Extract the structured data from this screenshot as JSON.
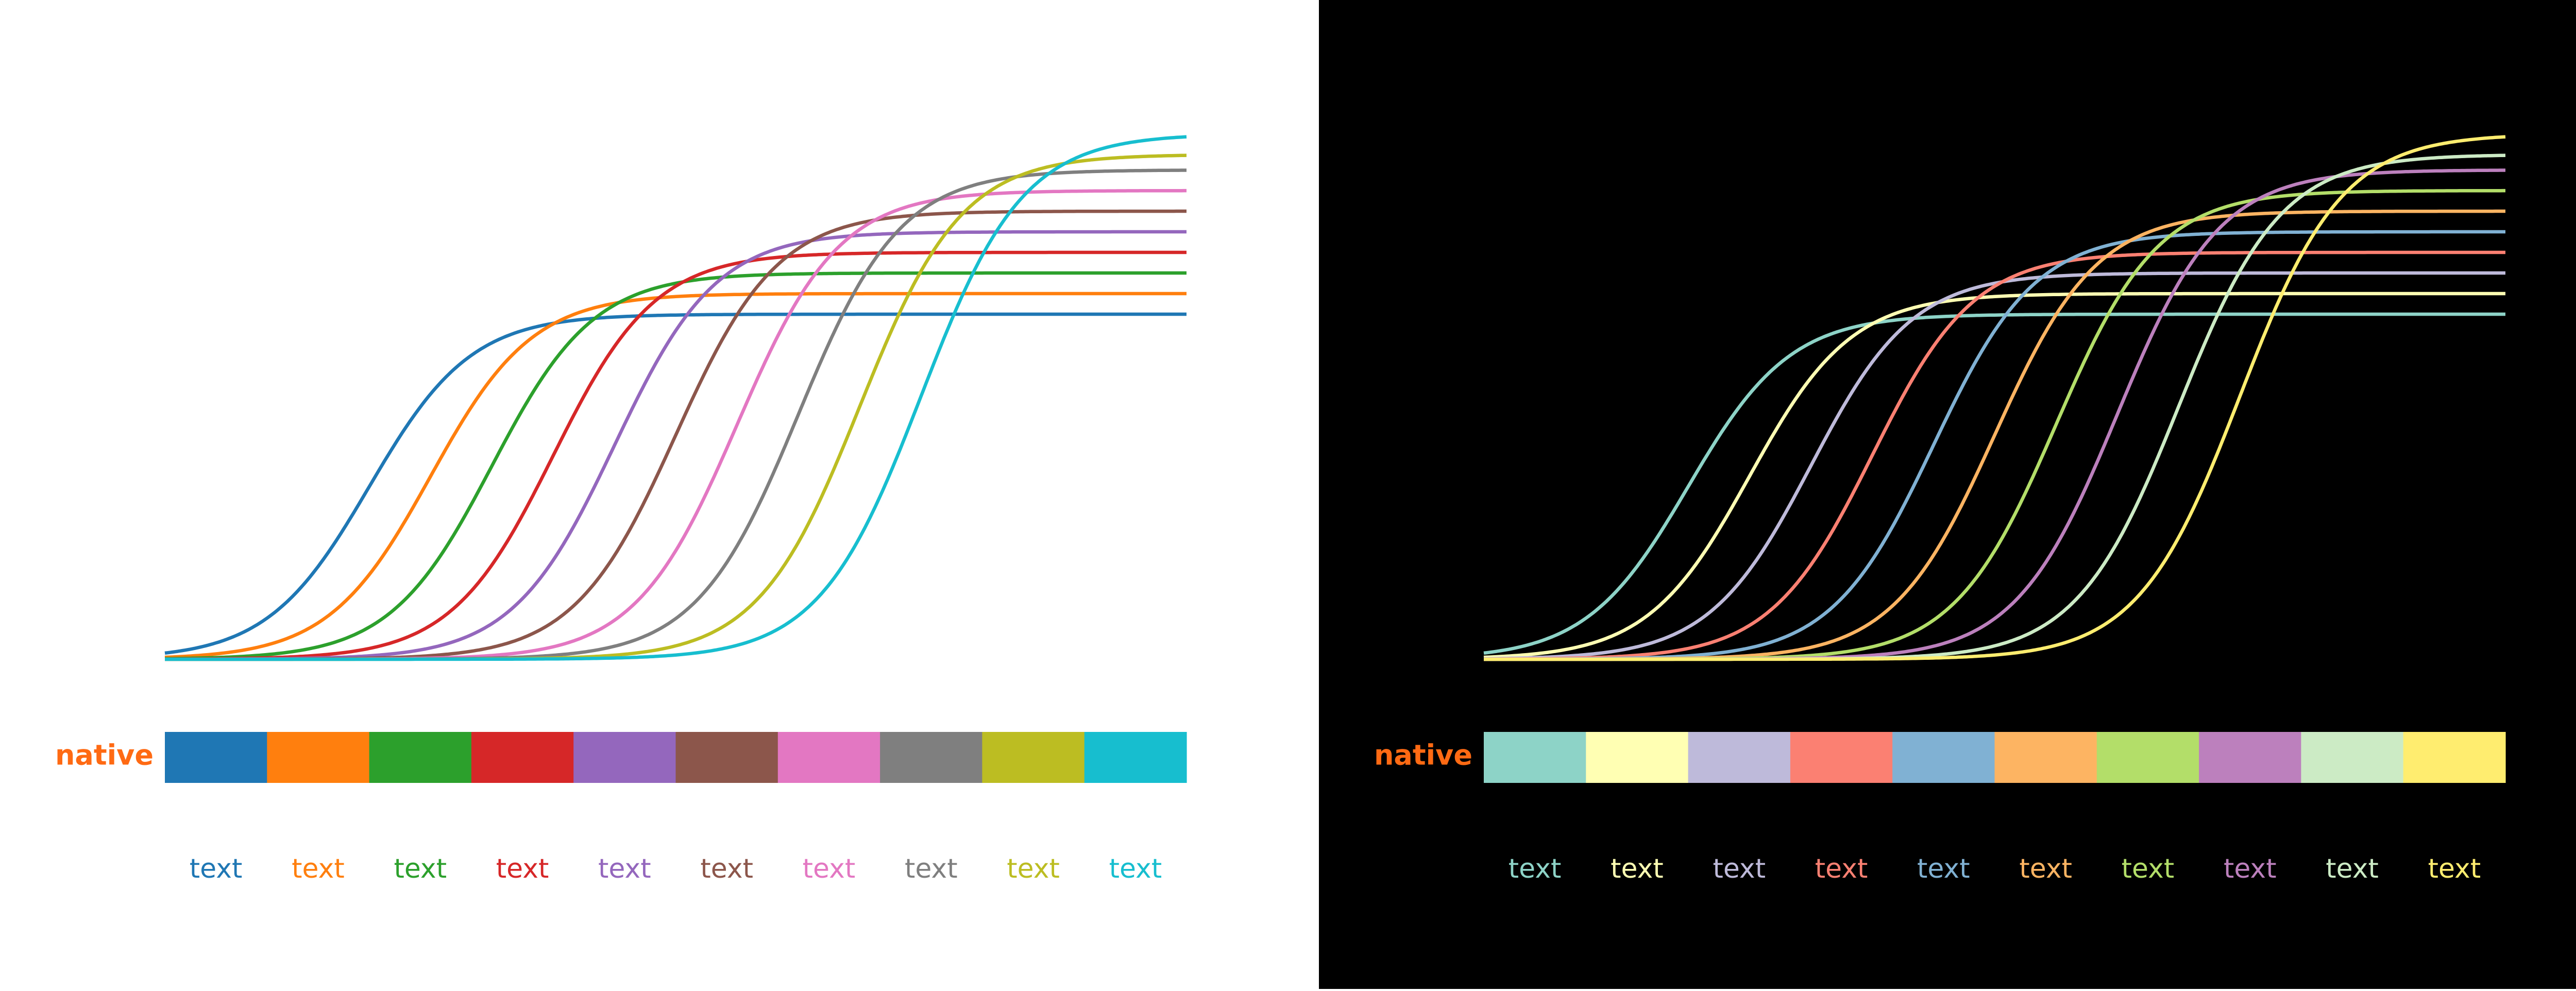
{
  "chart_data": [
    {
      "type": "line",
      "theme": "light",
      "background": "#ffffff",
      "axes_visible": false,
      "grid": false,
      "x_range": [
        0,
        1
      ],
      "y_range": [
        0,
        1
      ],
      "curve_form": "sigmoid",
      "series": [
        {
          "color": "#1f77b4",
          "plateau": 0.67,
          "midpoint": 0.2
        },
        {
          "color": "#ff7f0e",
          "plateau": 0.71,
          "midpoint": 0.26
        },
        {
          "color": "#2ca02c",
          "plateau": 0.75,
          "midpoint": 0.32
        },
        {
          "color": "#d62728",
          "plateau": 0.79,
          "midpoint": 0.38
        },
        {
          "color": "#9467bd",
          "plateau": 0.83,
          "midpoint": 0.44
        },
        {
          "color": "#8c564b",
          "plateau": 0.87,
          "midpoint": 0.5
        },
        {
          "color": "#e377c2",
          "plateau": 0.91,
          "midpoint": 0.56
        },
        {
          "color": "#7f7f7f",
          "plateau": 0.95,
          "midpoint": 0.62
        },
        {
          "color": "#bcbd22",
          "plateau": 0.98,
          "midpoint": 0.68
        },
        {
          "color": "#17becf",
          "plateau": 1.02,
          "midpoint": 0.74
        }
      ],
      "swatch_label": "native",
      "swatch_label_color": "#ff6a13",
      "swatches": [
        "#1f77b4",
        "#ff7f0e",
        "#2ca02c",
        "#d62728",
        "#9467bd",
        "#8c564b",
        "#e377c2",
        "#7f7f7f",
        "#bcbd22",
        "#17becf"
      ],
      "text_labels": [
        "text",
        "text",
        "text",
        "text",
        "text",
        "text",
        "text",
        "text",
        "text",
        "text"
      ]
    },
    {
      "type": "line",
      "theme": "dark",
      "background": "#000000",
      "axes_visible": false,
      "grid": false,
      "x_range": [
        0,
        1
      ],
      "y_range": [
        0,
        1
      ],
      "curve_form": "sigmoid",
      "series": [
        {
          "color": "#8dd3c7",
          "plateau": 0.67,
          "midpoint": 0.2
        },
        {
          "color": "#ffffb3",
          "plateau": 0.71,
          "midpoint": 0.26
        },
        {
          "color": "#bebada",
          "plateau": 0.75,
          "midpoint": 0.32
        },
        {
          "color": "#fb8072",
          "plateau": 0.79,
          "midpoint": 0.38
        },
        {
          "color": "#80b1d3",
          "plateau": 0.83,
          "midpoint": 0.44
        },
        {
          "color": "#fdb462",
          "plateau": 0.87,
          "midpoint": 0.5
        },
        {
          "color": "#b3de69",
          "plateau": 0.91,
          "midpoint": 0.56
        },
        {
          "color": "#bc80bd",
          "plateau": 0.95,
          "midpoint": 0.62
        },
        {
          "color": "#ccebc5",
          "plateau": 0.98,
          "midpoint": 0.68
        },
        {
          "color": "#ffed6f",
          "plateau": 1.02,
          "midpoint": 0.74
        }
      ],
      "swatch_label": "native",
      "swatch_label_color": "#ff6a13",
      "swatches": [
        "#8dd3c7",
        "#ffffb3",
        "#bebada",
        "#fb8072",
        "#80b1d3",
        "#fdb462",
        "#b3de69",
        "#bc80bd",
        "#ccebc5",
        "#ffed6f"
      ],
      "text_labels": [
        "text",
        "text",
        "text",
        "text",
        "text",
        "text",
        "text",
        "text",
        "text",
        "text"
      ]
    }
  ]
}
